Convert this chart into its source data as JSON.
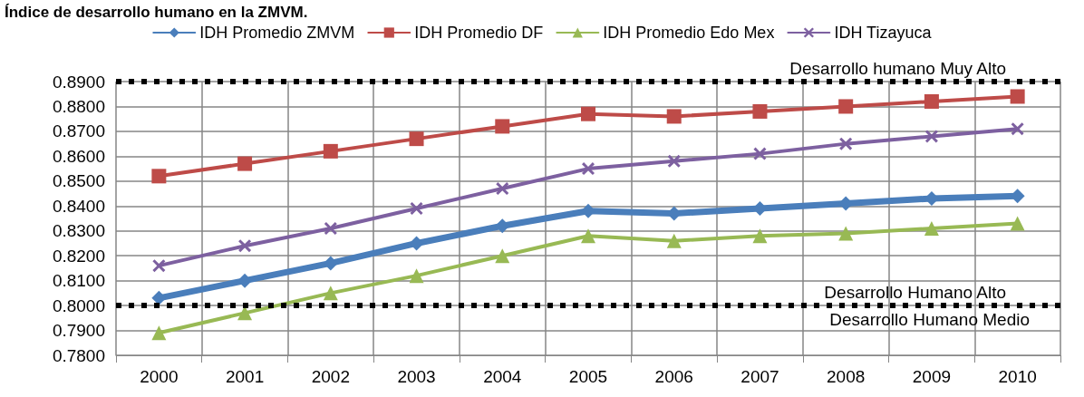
{
  "chart_data": {
    "type": "line",
    "title": "Índice de desarrollo humano en la ZMVM.",
    "categories": [
      "2000",
      "2001",
      "2002",
      "2003",
      "2004",
      "2005",
      "2006",
      "2007",
      "2008",
      "2009",
      "2010"
    ],
    "series": [
      {
        "name": "IDH Promedio ZMVM",
        "color": "#4a7ebb",
        "marker": "diamond",
        "values": [
          0.803,
          0.81,
          0.817,
          0.825,
          0.832,
          0.838,
          0.837,
          0.839,
          0.841,
          0.843,
          0.844
        ]
      },
      {
        "name": "IDH Promedio DF",
        "color": "#be4b48",
        "marker": "square",
        "values": [
          0.852,
          0.857,
          0.862,
          0.867,
          0.872,
          0.877,
          0.876,
          0.878,
          0.88,
          0.882,
          0.884
        ]
      },
      {
        "name": "IDH Promedio Edo Mex",
        "color": "#98b954",
        "marker": "triangle",
        "values": [
          0.789,
          0.797,
          0.805,
          0.812,
          0.82,
          0.828,
          0.826,
          0.828,
          0.829,
          0.831,
          0.833
        ]
      },
      {
        "name": "IDH Tizayuca",
        "color": "#7d60a0",
        "marker": "cross",
        "values": [
          0.816,
          0.824,
          0.831,
          0.839,
          0.847,
          0.855,
          0.858,
          0.861,
          0.865,
          0.868,
          0.871
        ]
      }
    ],
    "ylim": [
      0.78,
      0.89
    ],
    "yticks": [
      {
        "value": 0.78,
        "label": "0.7800"
      },
      {
        "value": 0.79,
        "label": "0.7900"
      },
      {
        "value": 0.8,
        "label": "0.8000"
      },
      {
        "value": 0.81,
        "label": "0.8100"
      },
      {
        "value": 0.82,
        "label": "0.8200"
      },
      {
        "value": 0.83,
        "label": "0.8300"
      },
      {
        "value": 0.84,
        "label": "0.8400"
      },
      {
        "value": 0.85,
        "label": "0.8500"
      },
      {
        "value": 0.86,
        "label": "0.8600"
      },
      {
        "value": 0.87,
        "label": "0.8700"
      },
      {
        "value": 0.88,
        "label": "0.8800"
      },
      {
        "value": 0.89,
        "label": "0.8900"
      }
    ],
    "ref_lines": [
      {
        "axis": "y",
        "value": 0.89,
        "label": "Desarrollo humano Muy Alto",
        "color": "#000000",
        "line_style": "dotted"
      },
      {
        "axis": "y",
        "value": 0.8,
        "label": "Desarrollo Humano Alto",
        "color": "#000000",
        "line_style": "dotted"
      }
    ],
    "annotations": [
      "Desarrollo Humano Medio"
    ],
    "grid": true,
    "legend": "top",
    "line_style": "solid"
  }
}
